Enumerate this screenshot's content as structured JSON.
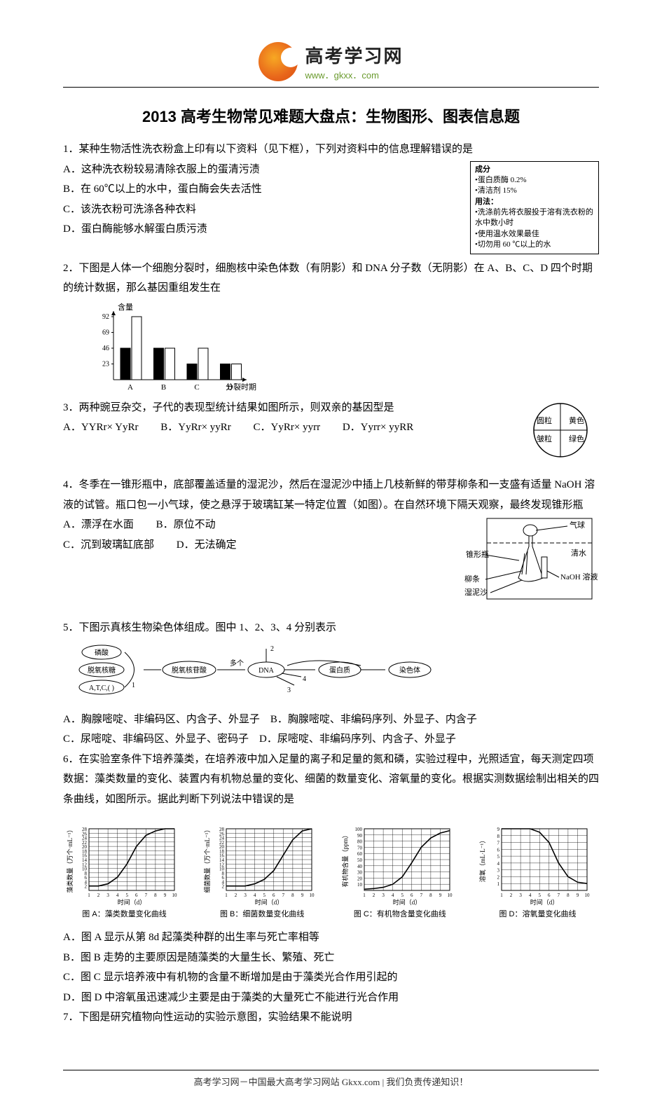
{
  "header": {
    "logo_cn": "高考学习网",
    "logo_url": "www．gkxx．com"
  },
  "title": "2013 高考生物常见难题大盘点：生物图形、图表信息题",
  "q1": {
    "stem": "1．某种生物活性洗衣粉盒上印有以下资料（见下框），下列对资料中的信息理解错误的是",
    "optA": "A．这种洗衣粉较易清除衣服上的蛋清污渍",
    "optB": "B．在 60℃以上的水中，蛋白酶会失去活性",
    "optC": "C．该洗衣粉可洗涤各种衣料",
    "optD": "D．蛋白酶能够水解蛋白质污渍",
    "box": {
      "l1": "成分",
      "l2": "•蛋白质酶   0.2%",
      "l3": "•清洁剂     15%",
      "l4": "用法：",
      "l5": "•洗涤前先将衣服投于溶有洗衣粉的水中数小时",
      "l6": "•使用温水效果最佳",
      "l7": "•切勿用 60 ℃以上的水"
    }
  },
  "q2": {
    "stem": "2．下图是人体一个细胞分裂时，细胞核中染色体数（有阴影）和 DNA 分子数（无阴影）在 A、B、C、D 四个时期的统计数据，那么基因重组发生在",
    "chart": {
      "ylabel": "含量",
      "yticks": [
        23,
        46,
        69,
        92
      ],
      "xlabels": [
        "A",
        "B",
        "C",
        "D"
      ],
      "xaxis_label": "分裂时期",
      "shaded": [
        46,
        46,
        23,
        23
      ],
      "unshaded": [
        92,
        46,
        46,
        23
      ],
      "bar_fill_shaded": "#000000",
      "bar_fill_unshaded": "#ffffff",
      "bar_stroke": "#000000",
      "ymax": 92
    }
  },
  "q3": {
    "stem": "3．两种豌豆杂交，子代的表现型统计结果如图所示，则双亲的基因型是",
    "optA": "A．YYRr× YyRr",
    "optB": "B．YyRr× yyRr",
    "optC": "C．YyRr× yyrr",
    "optD": "D．Yyrr× yyRR",
    "pie": {
      "labels_tl": "圆粒",
      "labels_tr": "黄色",
      "labels_bl": "皱粒",
      "labels_br": "绿色",
      "colors": {
        "outline": "#000000",
        "fill": "#ffffff"
      }
    }
  },
  "q4": {
    "stem": "4．冬季在一锥形瓶中，底部覆盖适量的湿泥沙，然后在湿泥沙中插上几枝新鲜的带芽柳条和一支盛有适量 NaOH 溶液的试管。瓶口包一小气球，使之悬浮于玻璃缸某一特定位置（如图）。在自然环境下隔天观察，最终发现锥形瓶",
    "optA": "A．漂浮在水面",
    "optB": "B．原位不动",
    "optC": "C．沉到玻璃缸底部",
    "optD": "D．无法确定",
    "labels": {
      "flask": "锥形瓶",
      "balloon": "气球",
      "water": "清水",
      "naoh": "NaOH 溶液",
      "willow": "柳条",
      "sand": "湿泥沙"
    }
  },
  "q5": {
    "stem": "5．下图示真核生物染色体组成。图中 1、2、3、4 分别表示",
    "diagram": {
      "left_items": [
        "磷酸",
        "脱氧核糖",
        "A,T,C,( )"
      ],
      "mid": "脱氧核苷酸",
      "arrow_many": "多个",
      "dna": "DNA",
      "protein": "蛋白质",
      "chrom": "染色体",
      "nums": [
        "1",
        "2",
        "3",
        "4"
      ]
    },
    "optA": "A．胸腺嘧啶、非编码区、内含子、外显子",
    "optB": "B．胸腺嘧啶、非编码序列、外显子、内含子",
    "optC": "C．尿嘧啶、非编码区、外显子、密码子",
    "optD": "D．尿嘧啶、非编码序列、内含子、外显子"
  },
  "q6": {
    "stem": "6．在实验室条件下培养藻类，在培养液中加入足量的离子和足量的氮和磷，实验过程中，光照适宜，每天测定四项数据：藻类数量的变化、装置内有机物总量的变化、细菌的数量变化、溶氧量的变化。根据实测数据绘制出相关的四条曲线，如图所示。据此判断下列说法中错误的是",
    "charts": {
      "xaxis": "时间（d）",
      "xticks": [
        1,
        2,
        3,
        4,
        5,
        6,
        7,
        8,
        9,
        10
      ],
      "a": {
        "caption": "图 A：藻类数量变化曲线",
        "ylabel": "藻类数量（万个·mL⁻¹）",
        "yticks": [
          2,
          4,
          6,
          8,
          10,
          12,
          14,
          16,
          18,
          20,
          22,
          24,
          26,
          28
        ],
        "ymax": 28,
        "points": [
          2,
          2,
          3,
          6,
          12,
          20,
          25,
          27,
          28,
          28
        ]
      },
      "b": {
        "caption": "图 B：细菌数量变化曲线",
        "ylabel": "细菌数量（万个·mL⁻¹）",
        "yticks": [
          2,
          4,
          6,
          8,
          10,
          12,
          14,
          16,
          18,
          20,
          22,
          24,
          26,
          28
        ],
        "ymax": 28,
        "points": [
          2,
          2,
          2,
          3,
          5,
          9,
          16,
          23,
          27,
          28
        ]
      },
      "c": {
        "caption": "图 C：有机物含量变化曲线",
        "ylabel": "有机物含量（ppm）",
        "yticks": [
          10,
          20,
          30,
          40,
          50,
          60,
          70,
          80,
          90,
          100
        ],
        "ymax": 100,
        "points": [
          2,
          3,
          5,
          10,
          22,
          45,
          70,
          85,
          93,
          97
        ]
      },
      "d": {
        "caption": "图 D：溶氧量变化曲线",
        "ylabel": "溶氧（mL·L⁻¹）",
        "yticks": [
          1,
          2,
          3,
          4,
          5,
          6,
          7,
          8,
          9
        ],
        "ymax": 9,
        "points": [
          9,
          9,
          9,
          9,
          8.5,
          7,
          4,
          2,
          1.2,
          1
        ]
      }
    },
    "optA": "A．图 A 显示从第 8d 起藻类种群的出生率与死亡率相等",
    "optB": "B．图 B 走势的主要原因是随藻类的大量生长、繁殖、死亡",
    "optC": "C．图 C 显示培养液中有机物的含量不断增加是由于藻类光合作用引起的",
    "optD": "D．图 D 中溶氧虽迅速减少主要是由于藻类的大量死亡不能进行光合作用"
  },
  "q7": {
    "stem": "7．下图是研究植物向性运动的实验示意图，实验结果不能说明"
  },
  "footer": "高考学习网－中国最大高考学习网站 Gkxx.com  |  我们负责传递知识！"
}
